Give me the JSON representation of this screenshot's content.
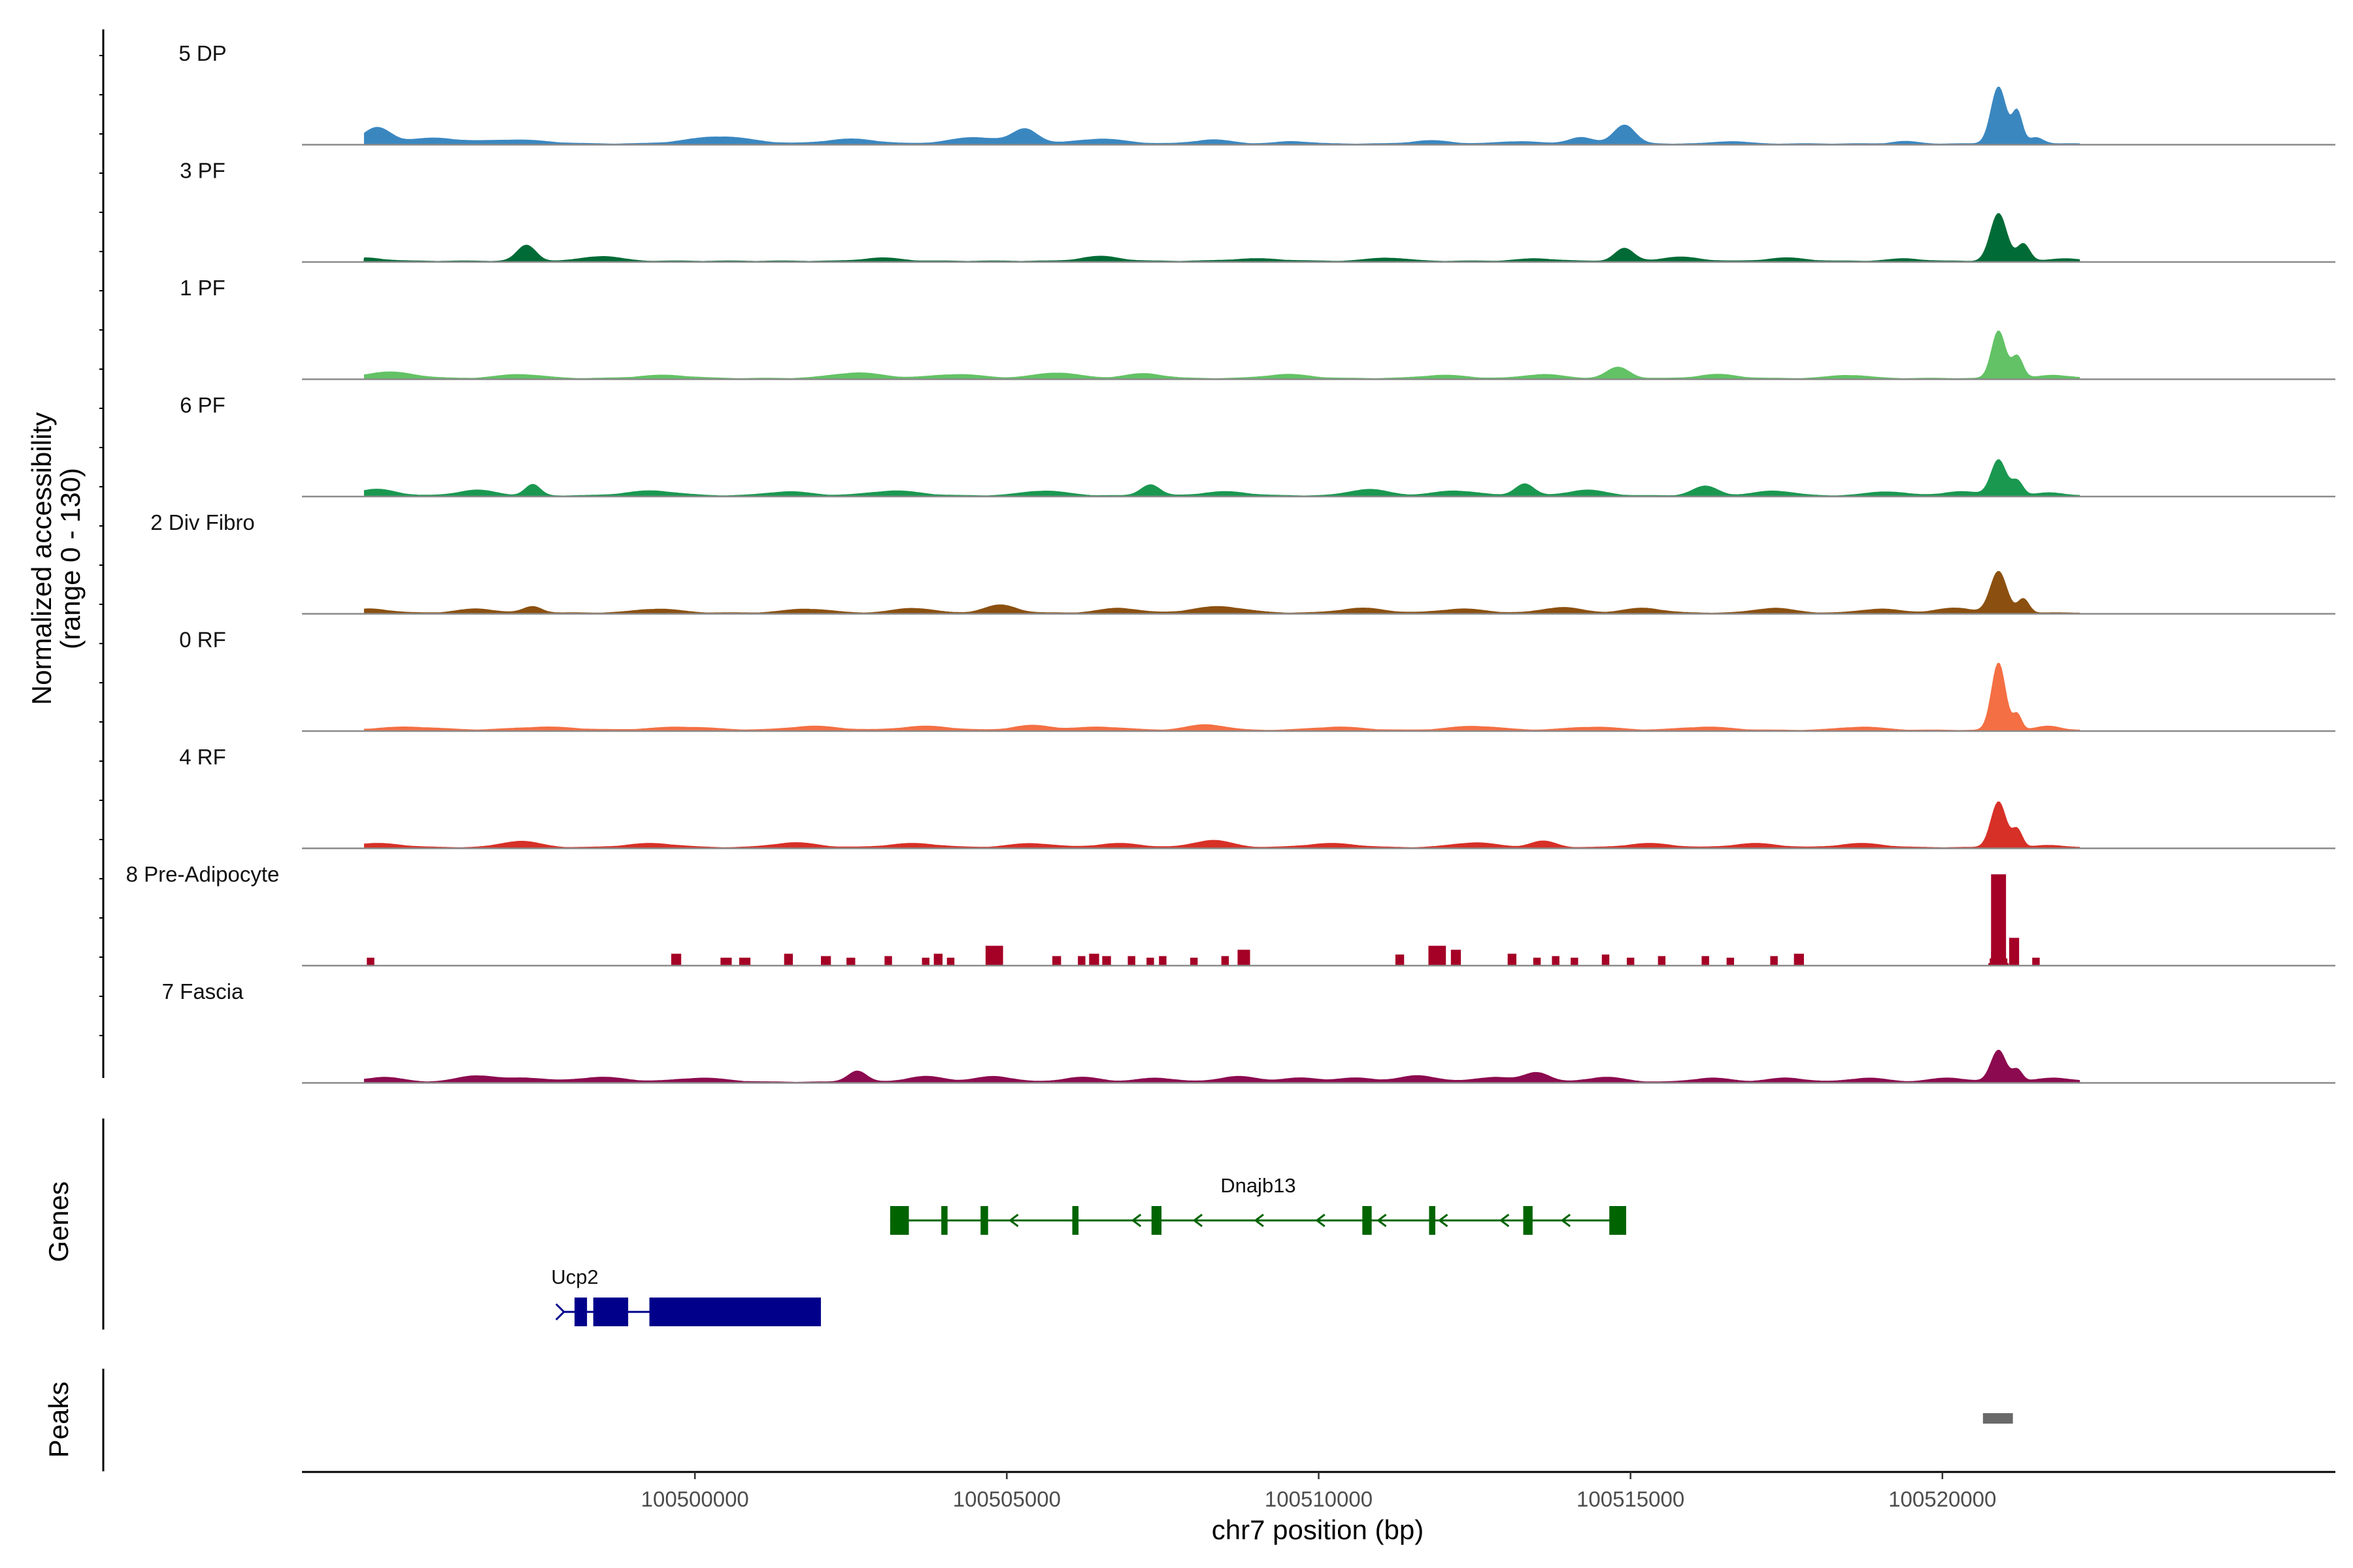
{
  "chart_data": {
    "type": "area",
    "title": "",
    "region": "chr7",
    "xlabel": "chr7 position (bp)",
    "ylabel_line1": "Normalized accessibility",
    "ylabel_line2": "(range 0 - 130)",
    "y_range": [
      0,
      130
    ],
    "x_range": [
      100493700,
      100526300
    ],
    "x_ticks": [
      {
        "value": 100500000,
        "label": "100500000"
      },
      {
        "value": 100505000,
        "label": "100505000"
      },
      {
        "value": 100510000,
        "label": "100510000"
      },
      {
        "value": 100515000,
        "label": "100515000"
      },
      {
        "value": 100520000,
        "label": "100520000"
      }
    ],
    "tracks": [
      {
        "name": "5 DP",
        "color": "#3a87c0",
        "peaks": [
          [
            100494900,
            20,
            220
          ],
          [
            100495800,
            7,
            400
          ],
          [
            100497100,
            5,
            500
          ],
          [
            100500400,
            9,
            500
          ],
          [
            100502500,
            6,
            400
          ],
          [
            100504500,
            8,
            400
          ],
          [
            100505300,
            18,
            200
          ],
          [
            100506500,
            6,
            400
          ],
          [
            100508300,
            5,
            300
          ],
          [
            100509600,
            3,
            250
          ],
          [
            100511800,
            4,
            300
          ],
          [
            100513200,
            3,
            300
          ],
          [
            100514200,
            8,
            200
          ],
          [
            100514900,
            24,
            170
          ],
          [
            100516600,
            3,
            250
          ],
          [
            100519400,
            3,
            200
          ],
          [
            100520900,
            72,
            120
          ],
          [
            100521200,
            40,
            80
          ],
          [
            100521500,
            8,
            120
          ]
        ]
      },
      {
        "name": "3 PF",
        "color": "#006b36",
        "peaks": [
          [
            100494700,
            4,
            300
          ],
          [
            100497300,
            20,
            150
          ],
          [
            100498500,
            6,
            300
          ],
          [
            100503000,
            4,
            300
          ],
          [
            100506500,
            6,
            300
          ],
          [
            100509000,
            3,
            400
          ],
          [
            100511100,
            4,
            300
          ],
          [
            100513500,
            3,
            300
          ],
          [
            100514900,
            16,
            150
          ],
          [
            100515800,
            5,
            300
          ],
          [
            100517500,
            4,
            300
          ],
          [
            100519400,
            3,
            250
          ],
          [
            100520900,
            60,
            130
          ],
          [
            100521300,
            22,
            100
          ],
          [
            100522000,
            3,
            250
          ]
        ]
      },
      {
        "name": "1 PF",
        "color": "#63c265",
        "peaks": [
          [
            100495100,
            8,
            400
          ],
          [
            100497200,
            5,
            350
          ],
          [
            100499500,
            4,
            400
          ],
          [
            100502600,
            7,
            400
          ],
          [
            100504200,
            5,
            400
          ],
          [
            100505800,
            7,
            350
          ],
          [
            100507200,
            6,
            300
          ],
          [
            100509500,
            5,
            350
          ],
          [
            100512000,
            4,
            350
          ],
          [
            100513600,
            5,
            300
          ],
          [
            100514800,
            14,
            180
          ],
          [
            100516400,
            5,
            300
          ],
          [
            100518500,
            4,
            300
          ],
          [
            100520900,
            60,
            110
          ],
          [
            100521200,
            28,
            90
          ],
          [
            100521800,
            4,
            250
          ]
        ]
      },
      {
        "name": "6 PF",
        "color": "#1a9850",
        "peaks": [
          [
            100494900,
            8,
            300
          ],
          [
            100496500,
            7,
            300
          ],
          [
            100497400,
            14,
            120
          ],
          [
            100499300,
            6,
            400
          ],
          [
            100501500,
            5,
            350
          ],
          [
            100503200,
            6,
            400
          ],
          [
            100505600,
            6,
            350
          ],
          [
            100507300,
            14,
            150
          ],
          [
            100508500,
            5,
            350
          ],
          [
            100510800,
            8,
            300
          ],
          [
            100512200,
            6,
            350
          ],
          [
            100513300,
            15,
            150
          ],
          [
            100514300,
            7,
            300
          ],
          [
            100516200,
            12,
            200
          ],
          [
            100517300,
            6,
            300
          ],
          [
            100519100,
            5,
            300
          ],
          [
            100520300,
            5,
            300
          ],
          [
            100520900,
            45,
            120
          ],
          [
            100521200,
            18,
            90
          ],
          [
            100521700,
            4,
            200
          ]
        ]
      },
      {
        "name": "2 Div Fibro",
        "color": "#8b5010",
        "peaks": [
          [
            100494800,
            5,
            300
          ],
          [
            100496500,
            5,
            300
          ],
          [
            100497400,
            8,
            150
          ],
          [
            100499400,
            5,
            350
          ],
          [
            100501800,
            5,
            350
          ],
          [
            100503500,
            6,
            300
          ],
          [
            100504900,
            10,
            250
          ],
          [
            100506800,
            6,
            300
          ],
          [
            100508400,
            8,
            400
          ],
          [
            100510700,
            6,
            350
          ],
          [
            100512300,
            5,
            350
          ],
          [
            100513900,
            7,
            300
          ],
          [
            100515200,
            6,
            300
          ],
          [
            100517300,
            6,
            300
          ],
          [
            100519000,
            5,
            300
          ],
          [
            100520200,
            6,
            300
          ],
          [
            100520900,
            52,
            130
          ],
          [
            100521300,
            18,
            90
          ]
        ]
      },
      {
        "name": "0 RF",
        "color": "#f46f43",
        "peaks": [
          [
            100495400,
            4,
            500
          ],
          [
            100497600,
            4,
            500
          ],
          [
            100499800,
            4,
            500
          ],
          [
            100501900,
            5,
            400
          ],
          [
            100503700,
            5,
            400
          ],
          [
            100505400,
            6,
            300
          ],
          [
            100506500,
            4,
            400
          ],
          [
            100508200,
            7,
            300
          ],
          [
            100510300,
            4,
            400
          ],
          [
            100512500,
            5,
            400
          ],
          [
            100514400,
            4,
            400
          ],
          [
            100516200,
            4,
            400
          ],
          [
            100518700,
            4,
            350
          ],
          [
            100520900,
            85,
            110
          ],
          [
            100521200,
            20,
            70
          ],
          [
            100521700,
            5,
            200
          ]
        ]
      },
      {
        "name": "4 RF",
        "color": "#d73027",
        "peaks": [
          [
            100494900,
            5,
            400
          ],
          [
            100497200,
            8,
            300
          ],
          [
            100499300,
            5,
            400
          ],
          [
            100501600,
            6,
            350
          ],
          [
            100503500,
            5,
            400
          ],
          [
            100505400,
            5,
            350
          ],
          [
            100506800,
            5,
            350
          ],
          [
            100508300,
            9,
            300
          ],
          [
            100510200,
            5,
            400
          ],
          [
            100512500,
            6,
            350
          ],
          [
            100513600,
            8,
            200
          ],
          [
            100515300,
            5,
            350
          ],
          [
            100517000,
            5,
            350
          ],
          [
            100518700,
            5,
            350
          ],
          [
            100520900,
            58,
            120
          ],
          [
            100521200,
            22,
            80
          ],
          [
            100521700,
            3,
            200
          ]
        ]
      },
      {
        "name": "8 Pre-Adipocyte",
        "color": "#a50026",
        "type": "blocks",
        "peaks": [
          [
            100494800,
            10,
            60
          ],
          [
            100499700,
            15,
            80
          ],
          [
            100500500,
            10,
            90
          ],
          [
            100500800,
            10,
            90
          ],
          [
            100501500,
            15,
            70
          ],
          [
            100502100,
            12,
            80
          ],
          [
            100502500,
            10,
            70
          ],
          [
            100503100,
            12,
            60
          ],
          [
            100503700,
            10,
            60
          ],
          [
            100503900,
            15,
            70
          ],
          [
            100504100,
            10,
            60
          ],
          [
            100504800,
            25,
            140
          ],
          [
            100505800,
            12,
            70
          ],
          [
            100506200,
            12,
            60
          ],
          [
            100506400,
            15,
            80
          ],
          [
            100506600,
            12,
            70
          ],
          [
            100507000,
            12,
            60
          ],
          [
            100507300,
            10,
            60
          ],
          [
            100507500,
            12,
            60
          ],
          [
            100508000,
            10,
            60
          ],
          [
            100508500,
            12,
            60
          ],
          [
            100508800,
            20,
            100
          ],
          [
            100511300,
            14,
            70
          ],
          [
            100511900,
            25,
            140
          ],
          [
            100512200,
            20,
            80
          ],
          [
            100513100,
            15,
            70
          ],
          [
            100513500,
            10,
            60
          ],
          [
            100513800,
            12,
            60
          ],
          [
            100514100,
            10,
            60
          ],
          [
            100514600,
            14,
            60
          ],
          [
            100515000,
            10,
            60
          ],
          [
            100515500,
            12,
            60
          ],
          [
            100516200,
            12,
            60
          ],
          [
            100516600,
            10,
            60
          ],
          [
            100517300,
            12,
            60
          ],
          [
            100517700,
            15,
            80
          ],
          [
            100520900,
            115,
            120
          ],
          [
            100521150,
            35,
            80
          ],
          [
            100521500,
            10,
            60
          ]
        ]
      },
      {
        "name": "7 Fascia",
        "color": "#8c0a4f",
        "peaks": [
          [
            100495000,
            6,
            300
          ],
          [
            100496500,
            8,
            300
          ],
          [
            100497300,
            5,
            300
          ],
          [
            100498500,
            6,
            400
          ],
          [
            100500100,
            5,
            400
          ],
          [
            100502600,
            14,
            150
          ],
          [
            100503700,
            7,
            300
          ],
          [
            100504800,
            7,
            300
          ],
          [
            100506200,
            6,
            300
          ],
          [
            100507400,
            5,
            300
          ],
          [
            100508700,
            7,
            300
          ],
          [
            100509700,
            5,
            300
          ],
          [
            100510600,
            5,
            300
          ],
          [
            100511600,
            8,
            300
          ],
          [
            100512800,
            6,
            300
          ],
          [
            100513500,
            12,
            200
          ],
          [
            100514600,
            6,
            300
          ],
          [
            100516300,
            5,
            300
          ],
          [
            100517500,
            5,
            300
          ],
          [
            100518800,
            5,
            300
          ],
          [
            100520100,
            5,
            300
          ],
          [
            100520900,
            40,
            120
          ],
          [
            100521200,
            15,
            80
          ],
          [
            100521800,
            5,
            300
          ]
        ]
      }
    ],
    "genes": [
      {
        "name": "Dnajb13",
        "color": "#006400",
        "strand": "-",
        "start": 100503130,
        "end": 100514930,
        "exons": [
          [
            100503130,
            100503430
          ],
          [
            100503950,
            100504050
          ],
          [
            100504580,
            100504700
          ],
          [
            100506050,
            100506150
          ],
          [
            100507320,
            100507480
          ],
          [
            100510700,
            100510850
          ],
          [
            100511770,
            100511870
          ],
          [
            100513280,
            100513430
          ],
          [
            100514660,
            100514930
          ]
        ]
      },
      {
        "name": "Ucp2",
        "color": "#00008b",
        "strand": "+",
        "start": 100497900,
        "end": 100502020,
        "exons": [
          [
            100498070,
            100498270
          ],
          [
            100498370,
            100498930
          ],
          [
            100499270,
            100502020
          ]
        ]
      }
    ],
    "peaks_track": [
      {
        "start": 100520650,
        "end": 100521130,
        "color": "#696969"
      }
    ],
    "track_panel_label": "Genes",
    "peaks_panel_label": "Peaks"
  }
}
